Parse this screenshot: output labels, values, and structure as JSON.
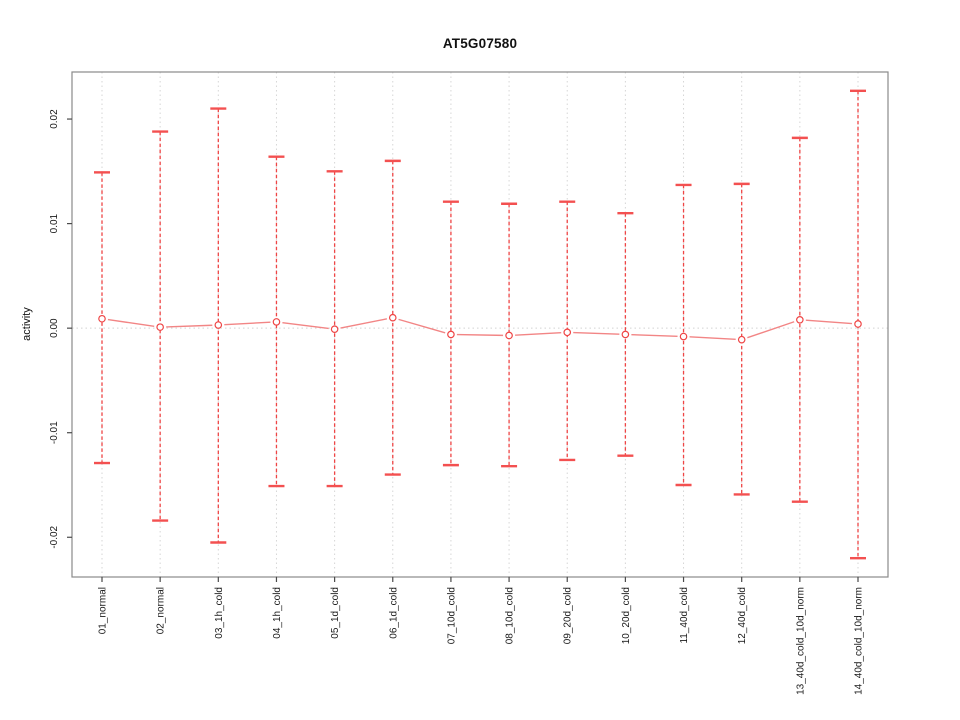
{
  "chart_data": {
    "type": "line",
    "subtype": "error-bars",
    "title": "AT5G07580",
    "xlabel": "",
    "ylabel": "activity",
    "categories": [
      "01_normal",
      "02_normal",
      "03_1h_cold",
      "04_1h_cold",
      "05_1d_cold",
      "06_1d_cold",
      "07_10d_cold",
      "08_10d_cold",
      "09_20d_cold",
      "10_20d_cold",
      "11_40d_cold",
      "12_40d_cold",
      "13_40d_cold_10d_norm",
      "14_40d_cold_10d_norm"
    ],
    "series": [
      {
        "name": "activity",
        "values": [
          0.0009,
          0.0001,
          0.0003,
          0.0006,
          -0.0001,
          0.001,
          -0.0006,
          -0.0007,
          -0.0004,
          -0.0006,
          -0.0008,
          -0.0011,
          0.0008,
          0.0004
        ],
        "upper": [
          0.0149,
          0.0188,
          0.021,
          0.0164,
          0.015,
          0.016,
          0.0121,
          0.0119,
          0.0121,
          0.011,
          0.0137,
          0.0138,
          0.0182,
          0.0227
        ],
        "lower": [
          -0.0129,
          -0.0184,
          -0.0205,
          -0.0151,
          -0.0151,
          -0.014,
          -0.0131,
          -0.0132,
          -0.0126,
          -0.0122,
          -0.015,
          -0.0159,
          -0.0166,
          -0.022
        ]
      }
    ],
    "y_ticks": [
      "0.02",
      "0.01",
      "0.00",
      "-0.01",
      "-0.02"
    ],
    "y_tick_values": [
      0.02,
      0.01,
      0,
      -0.01,
      -0.02
    ],
    "ylim": [
      -0.0238,
      0.0245
    ],
    "grid": {
      "vertical": "dotted",
      "zero_line": "dotted",
      "horizontal": "off"
    },
    "legend_position": "none"
  },
  "style": {
    "series_color": "#ef4545",
    "cap_color": "#f35050",
    "connector_color": "#f28585",
    "point_fill": "#ffffff",
    "grid_color": "#d6d6d6",
    "zero_line_color": "#d2d2d2",
    "box_color": "#8a8a8a",
    "tick_color": "#4a4a4a",
    "text_color": "#111111",
    "background": "#ffffff"
  }
}
